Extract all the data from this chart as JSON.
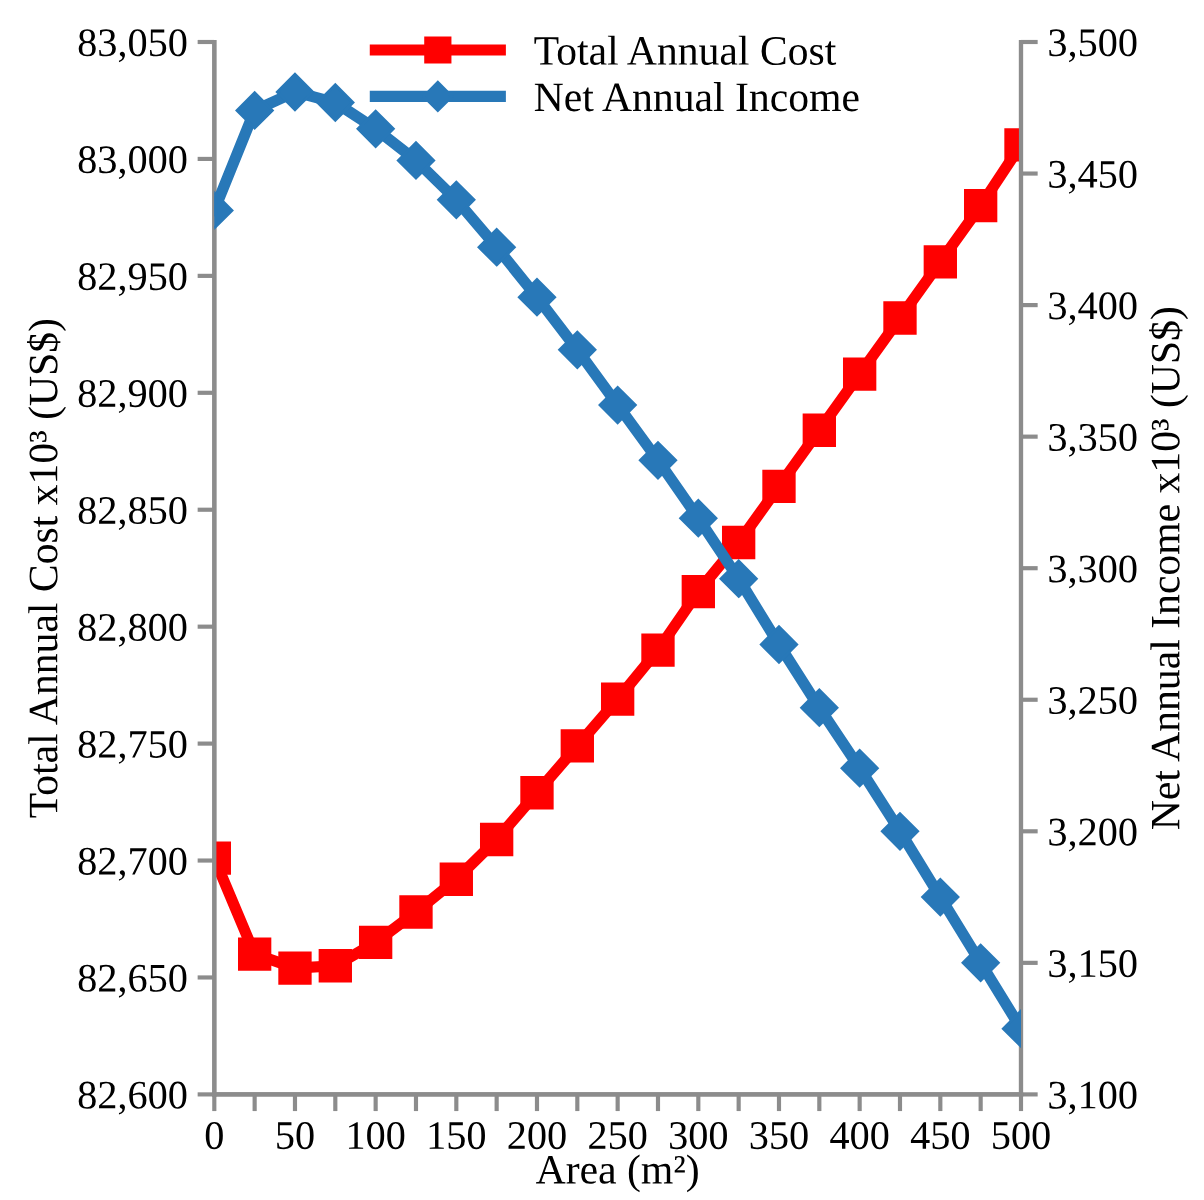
{
  "chart_data": {
    "type": "line",
    "xlabel": "Area (m²)",
    "ylabel": "Total Annual Cost x10³ (US$)",
    "y2label": "Net Annual Income x10³ (US$)",
    "x": [
      0,
      25,
      50,
      75,
      100,
      125,
      150,
      175,
      200,
      225,
      250,
      275,
      300,
      325,
      350,
      375,
      400,
      425,
      450,
      475,
      500
    ],
    "series": [
      {
        "name": "Total Annual Cost",
        "color": "#ff0000",
        "marker": "square",
        "values": [
          82701,
          82660,
          82654,
          82655,
          82665,
          82678,
          82692,
          82709,
          82729,
          82749,
          82769,
          82790,
          82815,
          82836,
          82860,
          82884,
          82908,
          82932,
          82956,
          82980,
          83006
        ]
      },
      {
        "name": "Net Annual Income",
        "color": "#2878b8",
        "marker": "diamond",
        "axis": "y2",
        "values": [
          3436,
          3474,
          3481,
          3477,
          3467,
          3455,
          3440,
          3422,
          3403,
          3383,
          3362,
          3341,
          3319,
          3296,
          3271,
          3247,
          3224,
          3200,
          3175,
          3150,
          3125
        ]
      }
    ],
    "xlim": [
      0,
      500
    ],
    "xticks": [
      0,
      {
        "value": 25,
        "label": null
      },
      50,
      {
        "value": 75,
        "label": null
      },
      100,
      {
        "value": 125,
        "label": null
      },
      150,
      {
        "value": 175,
        "label": null
      },
      200,
      {
        "value": 225,
        "label": null
      },
      250,
      {
        "value": 275,
        "label": null
      },
      300,
      {
        "value": 325,
        "label": null
      },
      350,
      {
        "value": 375,
        "label": null
      },
      400,
      {
        "value": 425,
        "label": null
      },
      450,
      {
        "value": 475,
        "label": null
      },
      500
    ],
    "ylim": [
      82600,
      83050
    ],
    "yticks": [
      {
        "value": 82600,
        "label": "82,600"
      },
      {
        "value": 82650,
        "label": "82,650"
      },
      {
        "value": 82700,
        "label": "82,700"
      },
      {
        "value": 82750,
        "label": "82,750"
      },
      {
        "value": 82800,
        "label": "82,800"
      },
      {
        "value": 82850,
        "label": "82,850"
      },
      {
        "value": 82900,
        "label": "82,900"
      },
      {
        "value": 82950,
        "label": "82,950"
      },
      {
        "value": 83000,
        "label": "83,000"
      },
      {
        "value": 83050,
        "label": "83,050"
      }
    ],
    "y2lim": [
      3100,
      3500
    ],
    "y2ticks": [
      {
        "value": 3100,
        "label": "3,100"
      },
      {
        "value": 3150,
        "label": "3,150"
      },
      {
        "value": 3200,
        "label": "3,200"
      },
      {
        "value": 3250,
        "label": "3,250"
      },
      {
        "value": 3300,
        "label": "3,300"
      },
      {
        "value": 3350,
        "label": "3,350"
      },
      {
        "value": 3400,
        "label": "3,400"
      },
      {
        "value": 3450,
        "label": "3,450"
      },
      {
        "value": 3500,
        "label": "3,500"
      }
    ],
    "grid": false,
    "legend": "top",
    "line_style": "solid"
  }
}
